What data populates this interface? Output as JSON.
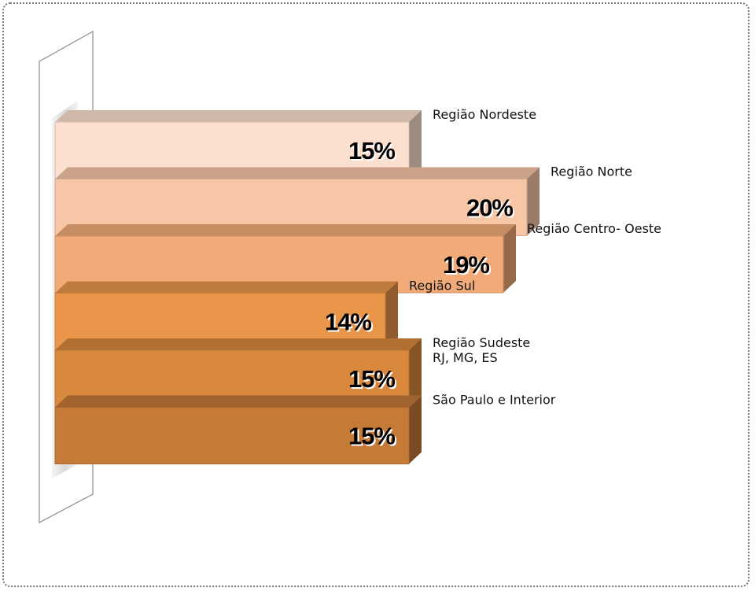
{
  "chart_data": {
    "type": "bar",
    "orientation": "horizontal",
    "title": "",
    "xlabel": "",
    "ylabel": "",
    "xlim": [
      0,
      20
    ],
    "grid": false,
    "legend": "none",
    "categories": [
      [
        "Região  Nordeste"
      ],
      [
        "Região  Norte"
      ],
      [
        "Região  Centro- Oeste"
      ],
      [
        "Região  Sul"
      ],
      [
        "Região Sudeste",
        "RJ, MG, ES"
      ],
      [
        "São Paulo e Interior"
      ]
    ],
    "values": [
      15,
      20,
      19,
      14,
      15,
      15
    ],
    "value_labels": [
      "15%",
      "20%",
      "19%",
      "14%",
      "15%",
      "15%"
    ],
    "colors": [
      "#fbe0cf",
      "#f7c6a7",
      "#f2ab78",
      "#e9954a",
      "#d8893d",
      "#c67a38"
    ]
  }
}
